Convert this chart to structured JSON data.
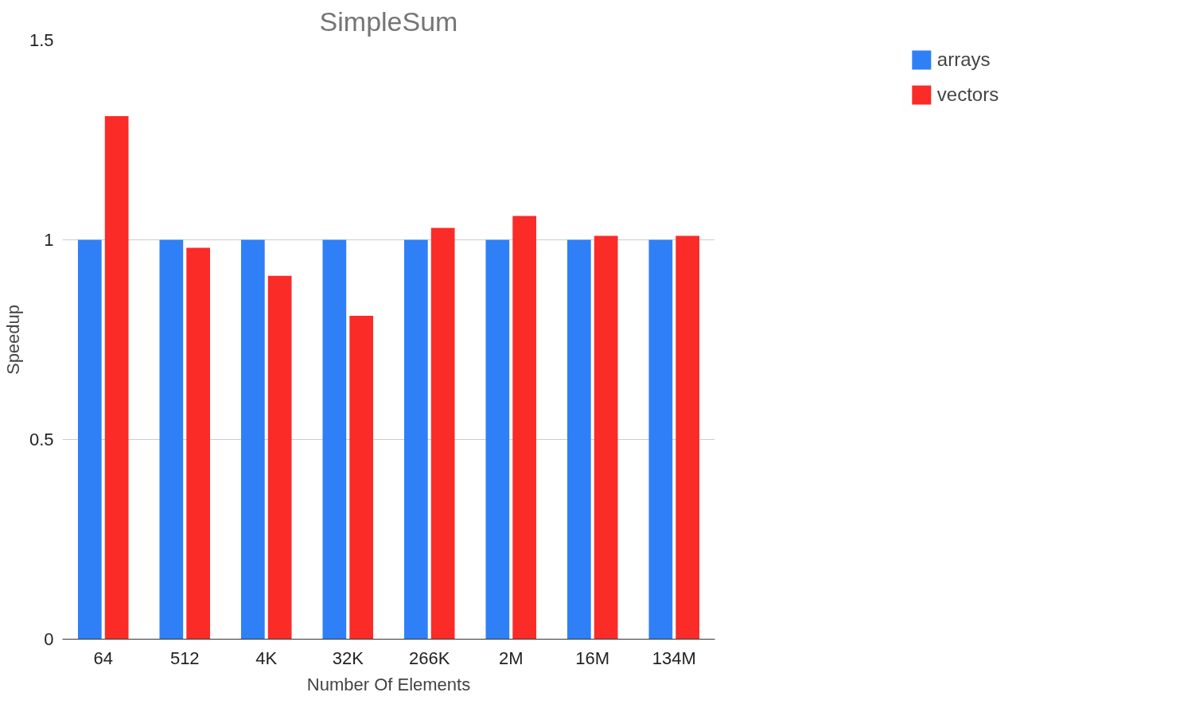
{
  "chart_data": {
    "type": "bar",
    "title": "SimpleSum",
    "xlabel": "Number Of Elements",
    "ylabel": "Speedup",
    "categories": [
      "64",
      "512",
      "4K",
      "32K",
      "266K",
      "2M",
      "16M",
      "134M"
    ],
    "series": [
      {
        "name": "arrays",
        "color": "#2f80f7",
        "values": [
          1,
          1,
          1,
          1,
          1,
          1,
          1,
          1
        ]
      },
      {
        "name": "vectors",
        "color": "#fb2b28",
        "values": [
          1.31,
          0.98,
          0.91,
          0.81,
          1.03,
          1.06,
          1.01,
          1.01
        ]
      }
    ],
    "ylim": [
      0,
      1.5
    ],
    "yticks": [
      0,
      0.5,
      1,
      1.5
    ],
    "grid": "y",
    "legend": "top right"
  }
}
